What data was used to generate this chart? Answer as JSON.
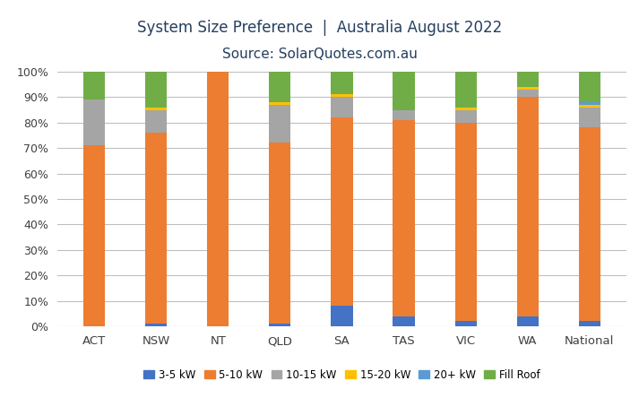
{
  "categories": [
    "ACT",
    "NSW",
    "NT",
    "QLD",
    "SA",
    "TAS",
    "VIC",
    "WA",
    "National"
  ],
  "series": {
    "3-5 kW": [
      0,
      1,
      0,
      1,
      8,
      4,
      2,
      4,
      2
    ],
    "5-10 kW": [
      71,
      75,
      100,
      71,
      74,
      77,
      78,
      86,
      76
    ],
    "10-15 kW": [
      18,
      9,
      0,
      15,
      8,
      4,
      5,
      3,
      8
    ],
    "15-20 kW": [
      0,
      1,
      0,
      1,
      1,
      0,
      1,
      1,
      1
    ],
    "20+ kW": [
      0,
      0,
      0,
      0,
      0,
      0,
      0,
      0,
      1
    ],
    "Fill Roof": [
      11,
      14,
      0,
      12,
      9,
      15,
      14,
      6,
      12
    ]
  },
  "colors": {
    "3-5 kW": "#4472C4",
    "5-10 kW": "#ED7D31",
    "10-15 kW": "#A5A5A5",
    "15-20 kW": "#FFC000",
    "20+ kW": "#5B9BD5",
    "Fill Roof": "#70AD47"
  },
  "title_line1": "System Size Preference  |  Australia August 2022",
  "title_line2": "Source: SolarQuotes.com.au",
  "title_color": "#243F60",
  "title_fontsize": 12,
  "subtitle_fontsize": 11,
  "ylim": [
    0,
    100
  ],
  "ytick_labels": [
    "0%",
    "10%",
    "20%",
    "30%",
    "40%",
    "50%",
    "60%",
    "70%",
    "80%",
    "90%",
    "100%"
  ],
  "ytick_values": [
    0,
    10,
    20,
    30,
    40,
    50,
    60,
    70,
    80,
    90,
    100
  ],
  "grid_color": "#BFBFBF",
  "background_color": "#FFFFFF",
  "bar_width": 0.35,
  "legend_order": [
    "3-5 kW",
    "5-10 kW",
    "10-15 kW",
    "15-20 kW",
    "20+ kW",
    "Fill Roof"
  ]
}
